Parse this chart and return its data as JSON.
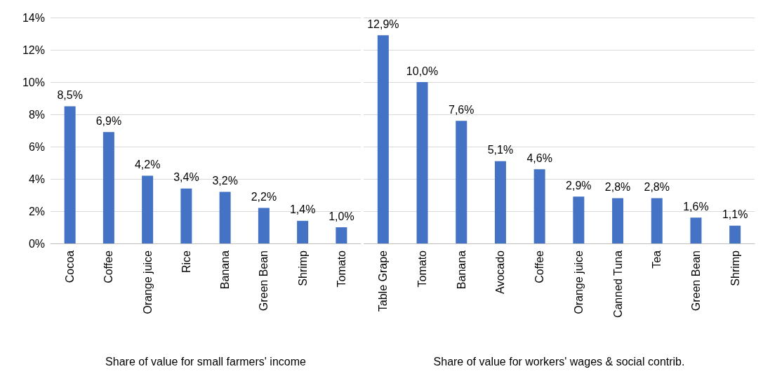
{
  "chart_data": [
    {
      "type": "bar",
      "xlabel": "Share of value for small farmers' income",
      "categories": [
        "Cocoa",
        "Coffee",
        "Orange juice",
        "Rice",
        "Banana",
        "Green Bean",
        "Shrimp",
        "Tomato"
      ],
      "values": [
        8.5,
        6.9,
        4.2,
        3.4,
        3.2,
        2.2,
        1.4,
        1.0
      ],
      "value_labels": [
        "8,5%",
        "6,9%",
        "4,2%",
        "3,4%",
        "3,2%",
        "2,2%",
        "1,4%",
        "1,0%"
      ],
      "color": "#4472c4",
      "ylim": [
        0,
        14
      ],
      "yticks": [
        {
          "value": 0,
          "label": "0%"
        },
        {
          "value": 2,
          "label": "2%"
        },
        {
          "value": 4,
          "label": "4%"
        },
        {
          "value": 6,
          "label": "6%"
        },
        {
          "value": 8,
          "label": "8%"
        },
        {
          "value": 10,
          "label": "10%"
        },
        {
          "value": 12,
          "label": "12%"
        },
        {
          "value": 14,
          "label": "14%"
        }
      ],
      "grid": "y"
    },
    {
      "type": "bar",
      "xlabel": "Share of value for workers' wages & social contrib.",
      "categories": [
        "Table Grape",
        "Tomato",
        "Banana",
        "Avocado",
        "Coffee",
        "Orange juice",
        "Canned Tuna",
        "Tea",
        "Green Bean",
        "Shrimp"
      ],
      "values": [
        12.9,
        10.0,
        7.6,
        5.1,
        4.6,
        2.9,
        2.8,
        2.8,
        1.6,
        1.1
      ],
      "value_labels": [
        "12,9%",
        "10,0%",
        "7,6%",
        "5,1%",
        "4,6%",
        "2,9%",
        "2,8%",
        "2,8%",
        "1,6%",
        "1,1%"
      ],
      "color": "#4472c4",
      "ylim": [
        0,
        14
      ],
      "yticks": [
        {
          "value": 0,
          "label": null
        },
        {
          "value": 2,
          "label": null
        },
        {
          "value": 4,
          "label": null
        },
        {
          "value": 6,
          "label": null
        },
        {
          "value": 8,
          "label": null
        },
        {
          "value": 10,
          "label": null
        },
        {
          "value": 12,
          "label": null
        },
        {
          "value": 14,
          "label": null
        }
      ],
      "grid": "y",
      "tick_labels": "x"
    }
  ]
}
